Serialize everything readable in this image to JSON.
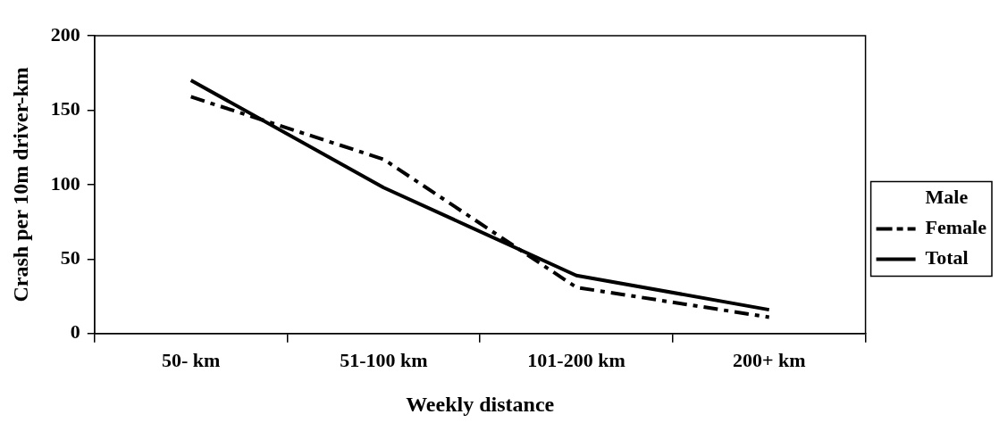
{
  "chart_data": {
    "type": "line",
    "xlabel": "Weekly distance",
    "ylabel": "Crash per 10m driver-km",
    "categories": [
      "50- km",
      "51-100 km",
      "101-200 km",
      "200+ km"
    ],
    "series": [
      {
        "name": "Male",
        "values": [
          null,
          null,
          null,
          null
        ]
      },
      {
        "name": "Female",
        "color": "#000000",
        "line_style": "dashed",
        "values": [
          159,
          117,
          31,
          11
        ]
      },
      {
        "name": "Total",
        "color": "#000000",
        "line_style": "solid",
        "values": [
          170,
          98,
          39,
          16
        ]
      }
    ],
    "ylim": [
      0,
      200
    ],
    "yticks": [
      0,
      50,
      100,
      150,
      200
    ],
    "grid": false,
    "legend": "right",
    "marker": "none"
  }
}
